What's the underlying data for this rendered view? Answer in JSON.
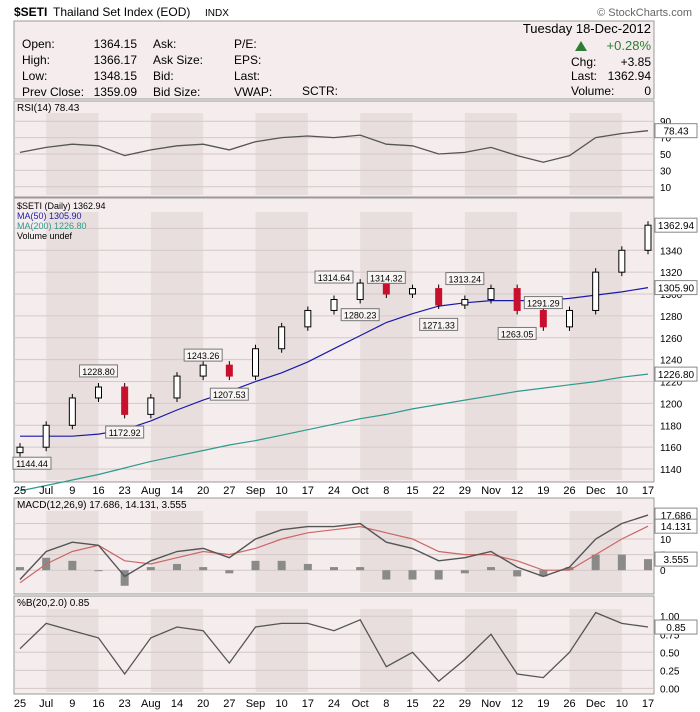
{
  "header": {
    "symbol": "$SETI",
    "name": "Thailand Set Index (EOD)",
    "exchange": "INDX",
    "credit": "© StockCharts.com",
    "date": "Tuesday 18-Dec-2012",
    "pct_change": "+0.28%",
    "chg_label": "Chg:",
    "chg_value": "+3.85",
    "last_label": "Last:",
    "last_value": "1362.94",
    "volume_label": "Volume:",
    "volume_value": "0",
    "stats_col1": [
      {
        "label": "Open:",
        "value": "1364.15"
      },
      {
        "label": "High:",
        "value": "1366.17"
      },
      {
        "label": "Low:",
        "value": "1348.15"
      },
      {
        "label": "Prev Close:",
        "value": "1359.09"
      }
    ],
    "stats_col2": [
      "Ask:",
      "Ask Size:",
      "Bid:",
      "Bid Size:"
    ],
    "stats_col3": [
      "P/E:",
      "EPS:",
      "Last:",
      "VWAP:"
    ],
    "sctr": "SCTR:",
    "up_color": "#2e7d32"
  },
  "rsi_panel": {
    "label": "RSI(14) 78.43",
    "value_badge": "78.43",
    "ticks": [
      "90",
      "70",
      "50",
      "30",
      "10"
    ]
  },
  "price_panel": {
    "legend": [
      {
        "text": "$SETI (Daily) 1362.94",
        "color": "#000000"
      },
      {
        "text": "MA(50) 1305.90",
        "color": "#1a1aa6"
      },
      {
        "text": "MA(200) 1226.80",
        "color": "#2e9a8c"
      },
      {
        "text": "Volume undef",
        "color": "#000000"
      }
    ],
    "badges": [
      "1362.94",
      "1305.90",
      "1226.80"
    ],
    "annotations": [
      "1144.44",
      "1228.80",
      "1172.92",
      "1243.26",
      "1207.53",
      "1314.64",
      "1280.23",
      "1314.32",
      "1271.33",
      "1313.24",
      "1263.05",
      "1291.29"
    ],
    "ticks": [
      "1360",
      "1340",
      "1320",
      "1300",
      "1280",
      "1260",
      "1240",
      "1220",
      "1200",
      "1180",
      "1160",
      "1140"
    ]
  },
  "macd_panel": {
    "label": "MACD(12,26,9) 17.686, 14.131, 3.555",
    "badges": [
      "17.686",
      "14.131",
      "3.555"
    ],
    "ticks": [
      "15",
      "10",
      "5",
      "0"
    ]
  },
  "pctb_panel": {
    "label": "%B(20,2.0) 0.85",
    "badge": "0.85",
    "ticks": [
      "1.00",
      "0.75",
      "0.50",
      "0.25",
      "0.00"
    ]
  },
  "x_axis_labels": [
    "25",
    "Jul",
    "9",
    "16",
    "23",
    "Aug",
    "14",
    "20",
    "27",
    "Sep",
    "10",
    "17",
    "24",
    "Oct",
    "8",
    "15",
    "22",
    "29",
    "Nov",
    "12",
    "19",
    "26",
    "Dec",
    "10",
    "17"
  ],
  "colors": {
    "up": "#000000",
    "down": "#c8102e",
    "ma50": "#1a1aa6",
    "ma200": "#2e9a8c",
    "macd": "#555555",
    "signal": "#cc6666",
    "histogram": "#8a8a8a",
    "panel_bg": "#f5eded"
  },
  "chart_data": {
    "type": "line",
    "title": "$SETI Thailand Set Index (EOD)",
    "x": [
      "25",
      "Jul",
      "9",
      "16",
      "23",
      "Aug",
      "14",
      "20",
      "27",
      "Sep",
      "10",
      "17",
      "24",
      "Oct",
      "8",
      "15",
      "22",
      "29",
      "Nov",
      "12",
      "19",
      "26",
      "Dec",
      "10",
      "17"
    ],
    "series": [
      {
        "name": "$SETI (Daily)",
        "values": [
          1160,
          1180,
          1205,
          1215,
          1190,
          1205,
          1225,
          1235,
          1225,
          1250,
          1270,
          1285,
          1295,
          1310,
          1300,
          1305,
          1290,
          1295,
          1305,
          1285,
          1270,
          1285,
          1320,
          1340,
          1362.94
        ]
      },
      {
        "name": "MA(50)",
        "values": [
          1170,
          1170,
          1170,
          1172,
          1176,
          1184,
          1194,
          1203,
          1211,
          1220,
          1228,
          1238,
          1250,
          1262,
          1274,
          1282,
          1289,
          1292,
          1294,
          1294,
          1294,
          1296,
          1299,
          1302,
          1305.9
        ]
      },
      {
        "name": "MA(200)",
        "values": [
          1120,
          1125,
          1130,
          1135,
          1141,
          1147,
          1152,
          1157,
          1162,
          1166,
          1171,
          1176,
          1181,
          1186,
          1190,
          1195,
          1199,
          1203,
          1207,
          1211,
          1214,
          1217,
          1220,
          1224,
          1226.8
        ]
      }
    ],
    "ylim": [
      1130,
      1375
    ],
    "rsi": {
      "name": "RSI(14)",
      "ylim": [
        0,
        100
      ],
      "values": [
        52,
        58,
        62,
        60,
        48,
        55,
        60,
        62,
        55,
        65,
        70,
        72,
        70,
        73,
        62,
        60,
        50,
        52,
        58,
        48,
        40,
        48,
        70,
        75,
        78.43
      ]
    },
    "macd": {
      "name": "MACD(12,26,9)",
      "ylim": [
        -7,
        19
      ],
      "macd": [
        -3,
        6,
        9,
        8,
        -2,
        3,
        6,
        7,
        4,
        10,
        13,
        14,
        14,
        15,
        9,
        7,
        3,
        4,
        6,
        1,
        -2,
        1,
        10,
        15,
        17.686
      ],
      "signal": [
        -4,
        2,
        6,
        8,
        3,
        2,
        4,
        6,
        5,
        7,
        10,
        12,
        13,
        14,
        12,
        10,
        6,
        5,
        5,
        3,
        0,
        0,
        5,
        10,
        14.131
      ],
      "histogram": [
        1,
        4,
        3,
        0,
        -5,
        1,
        2,
        1,
        -1,
        3,
        3,
        2,
        1,
        1,
        -3,
        -3,
        -3,
        -1,
        1,
        -2,
        -2,
        1,
        5,
        5,
        3.555
      ]
    },
    "pctb": {
      "name": "%B(20,2.0)",
      "ylim": [
        -0.05,
        1.1
      ],
      "values": [
        0.55,
        0.9,
        0.8,
        0.7,
        0.2,
        0.7,
        0.85,
        0.8,
        0.35,
        0.85,
        0.9,
        0.9,
        0.8,
        0.95,
        0.3,
        0.5,
        0.1,
        0.4,
        0.75,
        0.2,
        0.15,
        0.5,
        1.05,
        0.9,
        0.85
      ]
    }
  }
}
